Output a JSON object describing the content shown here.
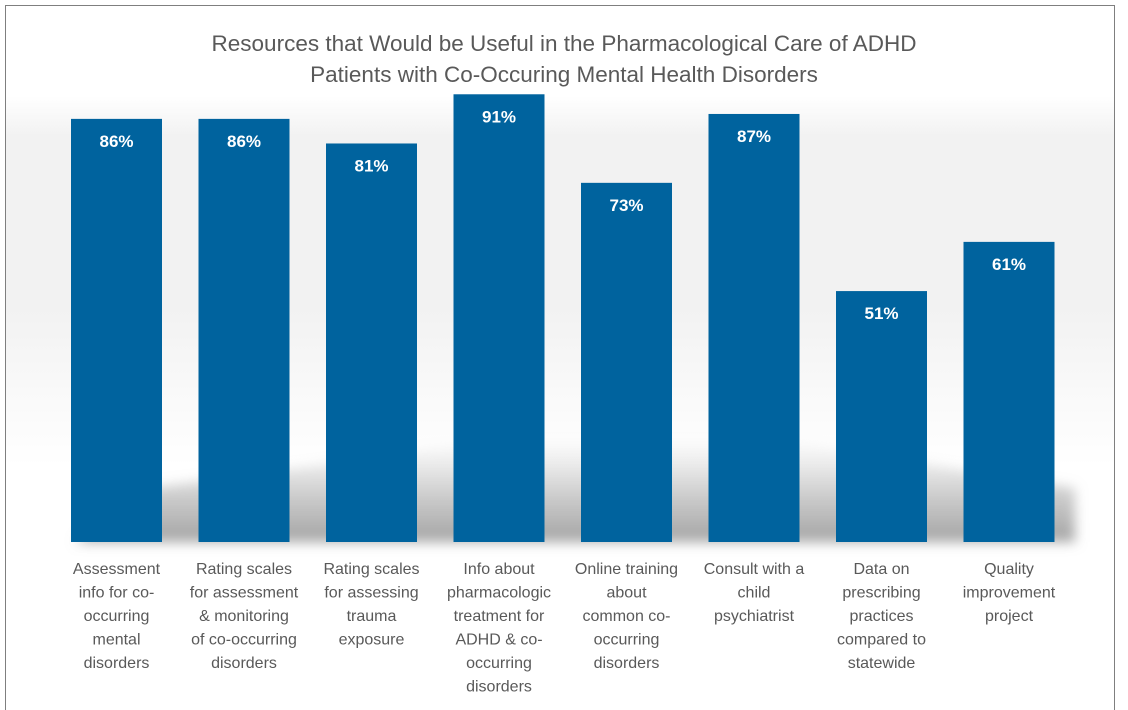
{
  "chart_data": {
    "type": "bar",
    "title_lines": [
      "Resources that Would be Useful in the Pharmacological Care of ADHD",
      "Patients with Co-Occuring Mental Health Disorders"
    ],
    "categories": [
      [
        "Assessment",
        "info for co-",
        "occurring",
        "mental",
        "disorders"
      ],
      [
        "Rating scales",
        "for assessment",
        "& monitoring",
        "of co-occurring",
        "disorders"
      ],
      [
        "Rating scales",
        "for assessing",
        "trauma",
        "exposure"
      ],
      [
        "Info about",
        "pharmacologic",
        "treatment  for",
        "ADHD & co-",
        "occurring",
        "disorders"
      ],
      [
        "Online training",
        "about",
        "common co-",
        "occurring",
        "disorders"
      ],
      [
        "Consult with a",
        "child",
        "psychiatrist"
      ],
      [
        "Data on",
        "prescribing",
        "practices",
        "compared to",
        "statewide"
      ],
      [
        "Quality",
        "improvement",
        "project"
      ]
    ],
    "values": [
      86,
      86,
      81,
      91,
      73,
      87,
      51,
      61
    ],
    "labels": [
      "86%",
      "86%",
      "81%",
      "91%",
      "73%",
      "87%",
      "51%",
      "61%"
    ],
    "ylim": [
      0,
      100
    ],
    "grid": false,
    "legend": "none",
    "bar_color": "#00639e",
    "label_color": "#ffffff",
    "text_color": "#595959"
  }
}
